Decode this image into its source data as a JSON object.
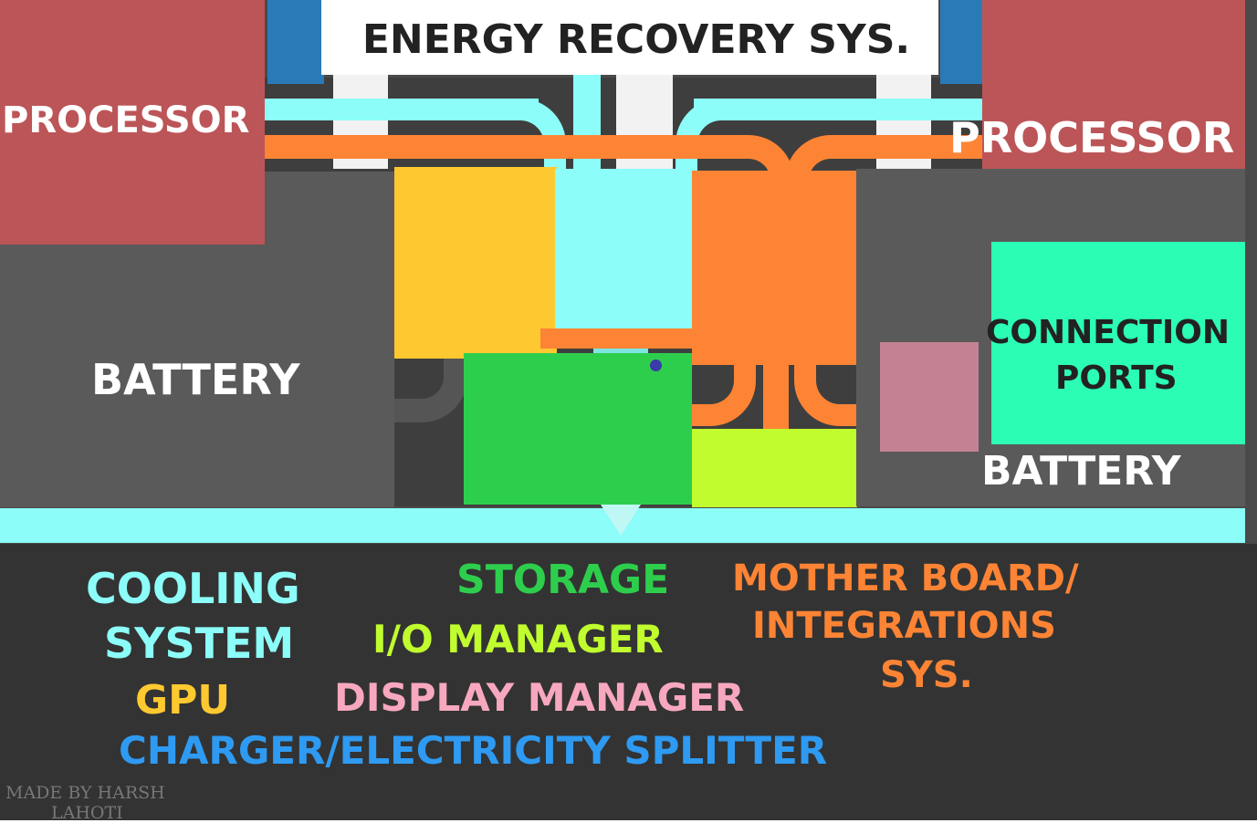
{
  "title": "ENERGY RECOVERY SYS.",
  "blocks": {
    "processor_left": "PROCESSOR",
    "processor_right": "PROCESSOR",
    "battery_left": "BATTERY",
    "battery_right": "BATTERY",
    "connection_ports_line1": "CONNECTION",
    "connection_ports_line2": "PORTS"
  },
  "legend": {
    "cooling_line1": "COOLING",
    "cooling_line2": "SYSTEM",
    "storage": "STORAGE",
    "io_manager": "I/O MANAGER",
    "motherboard_line1": "MOTHER BOARD/",
    "motherboard_line2": "INTEGRATIONS",
    "motherboard_line3": "SYS.",
    "gpu": "GPU",
    "display_manager": "DISPLAY MANAGER",
    "charger": "CHARGER/ELECTRICITY SPLITTER",
    "credit_line1": "MADE BY HARSH",
    "credit_line2": "LAHOTI"
  },
  "colors": {
    "processor": "#bc5558",
    "battery": "#5a5a5a",
    "gpu": "#fec930",
    "cooling": "#8cfdf8",
    "motherboard": "#fd8434",
    "storage": "#2ece4d",
    "io_manager": "#c1fd2e",
    "display_manager": "#c38293",
    "connection_ports": "#2cfdb5",
    "charger": "#2a7ab8",
    "legend_bg": "#333333"
  }
}
